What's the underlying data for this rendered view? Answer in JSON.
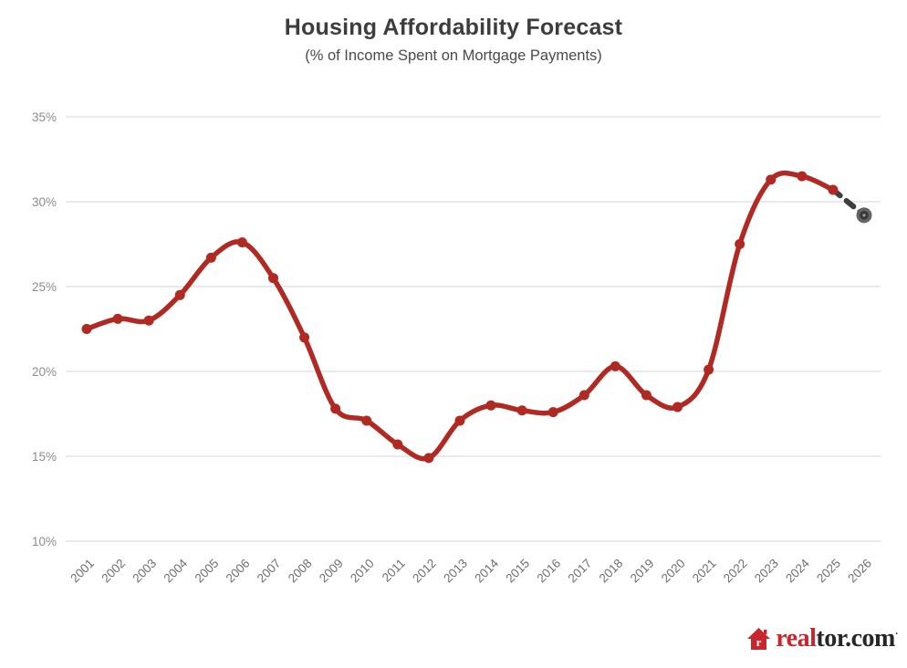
{
  "chart_data": {
    "type": "line",
    "title": "Housing Affordability Forecast",
    "subtitle": "(% of Income Spent on Mortgage Payments)",
    "years": [
      2001,
      2002,
      2003,
      2004,
      2005,
      2006,
      2007,
      2008,
      2009,
      2010,
      2011,
      2012,
      2013,
      2014,
      2015,
      2016,
      2017,
      2018,
      2019,
      2020,
      2021,
      2022,
      2023,
      2024,
      2025,
      2026
    ],
    "values": [
      22.5,
      23.1,
      23.0,
      24.5,
      26.7,
      27.6,
      25.5,
      22.0,
      17.8,
      17.1,
      15.7,
      14.9,
      17.1,
      18.0,
      17.7,
      17.6,
      18.6,
      20.3,
      18.6,
      17.9,
      20.1,
      27.5,
      31.3,
      31.5,
      30.7,
      29.2
    ],
    "forecast_start_year": 2025,
    "ylim": [
      10,
      35
    ],
    "yticks": [
      10,
      15,
      20,
      25,
      30,
      35
    ],
    "ytick_suffix": "%",
    "xlabel": "",
    "ylabel": "",
    "grid": "horizontal",
    "legend": "none",
    "line_color": "#b02a23",
    "forecast_color": "#3f3f3f",
    "gridline_color": "#e4e4e4",
    "ytick_color": "#8c8c8c",
    "xtick_color": "#6e6e6e"
  },
  "footer": {
    "logo_real": "real",
    "logo_tor": "tor.com",
    "logo_tm": "·"
  }
}
